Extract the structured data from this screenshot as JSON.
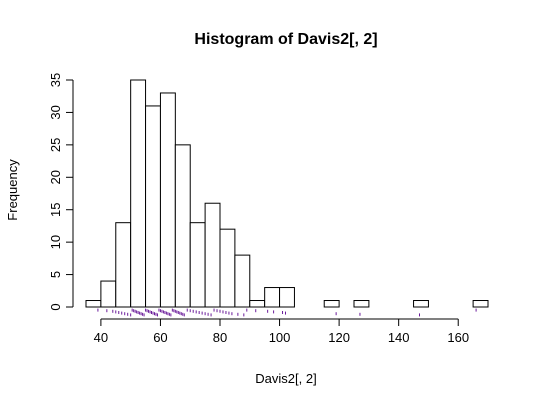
{
  "chart_data": {
    "type": "bar",
    "title": "Histogram of Davis2[, 2]",
    "xlabel": "Davis2[, 2]",
    "ylabel": "Frequency",
    "xlim": [
      35,
      170
    ],
    "ylim": [
      0,
      35
    ],
    "x_ticks": [
      40,
      60,
      80,
      100,
      120,
      140,
      160
    ],
    "y_ticks": [
      0,
      5,
      10,
      15,
      20,
      25,
      30,
      35
    ],
    "bin_width": 5,
    "bins": [
      {
        "start": 35,
        "end": 40,
        "count": 1
      },
      {
        "start": 40,
        "end": 45,
        "count": 4
      },
      {
        "start": 45,
        "end": 50,
        "count": 13
      },
      {
        "start": 50,
        "end": 55,
        "count": 35
      },
      {
        "start": 55,
        "end": 60,
        "count": 31
      },
      {
        "start": 60,
        "end": 65,
        "count": 33
      },
      {
        "start": 65,
        "end": 70,
        "count": 25
      },
      {
        "start": 70,
        "end": 75,
        "count": 13
      },
      {
        "start": 75,
        "end": 80,
        "count": 16
      },
      {
        "start": 80,
        "end": 85,
        "count": 12
      },
      {
        "start": 85,
        "end": 90,
        "count": 8
      },
      {
        "start": 90,
        "end": 95,
        "count": 1
      },
      {
        "start": 95,
        "end": 100,
        "count": 3
      },
      {
        "start": 100,
        "end": 105,
        "count": 3
      },
      {
        "start": 115,
        "end": 120,
        "count": 1
      },
      {
        "start": 125,
        "end": 130,
        "count": 1
      },
      {
        "start": 145,
        "end": 150,
        "count": 1
      },
      {
        "start": 165,
        "end": 170,
        "count": 1
      }
    ],
    "rug_points": [
      39,
      42,
      44,
      45,
      46,
      47,
      48,
      49,
      50,
      50.5,
      51,
      51.5,
      52,
      52.5,
      53,
      53.5,
      54,
      54.5,
      55,
      55.5,
      56,
      56.5,
      57,
      57.5,
      58,
      58.5,
      59,
      59.5,
      60,
      60.5,
      61,
      61.5,
      62,
      62.5,
      63,
      63.5,
      64,
      64.5,
      65,
      65.5,
      66,
      66.5,
      67,
      67.5,
      68,
      69,
      70,
      71,
      72,
      73,
      74,
      75,
      76,
      77,
      78,
      79,
      80,
      81,
      82,
      83,
      84,
      86,
      88,
      89,
      92,
      96,
      98,
      101,
      102,
      119,
      127,
      147,
      166
    ],
    "rug_color": "#6a1b9a",
    "grid": false,
    "legend": "none"
  }
}
